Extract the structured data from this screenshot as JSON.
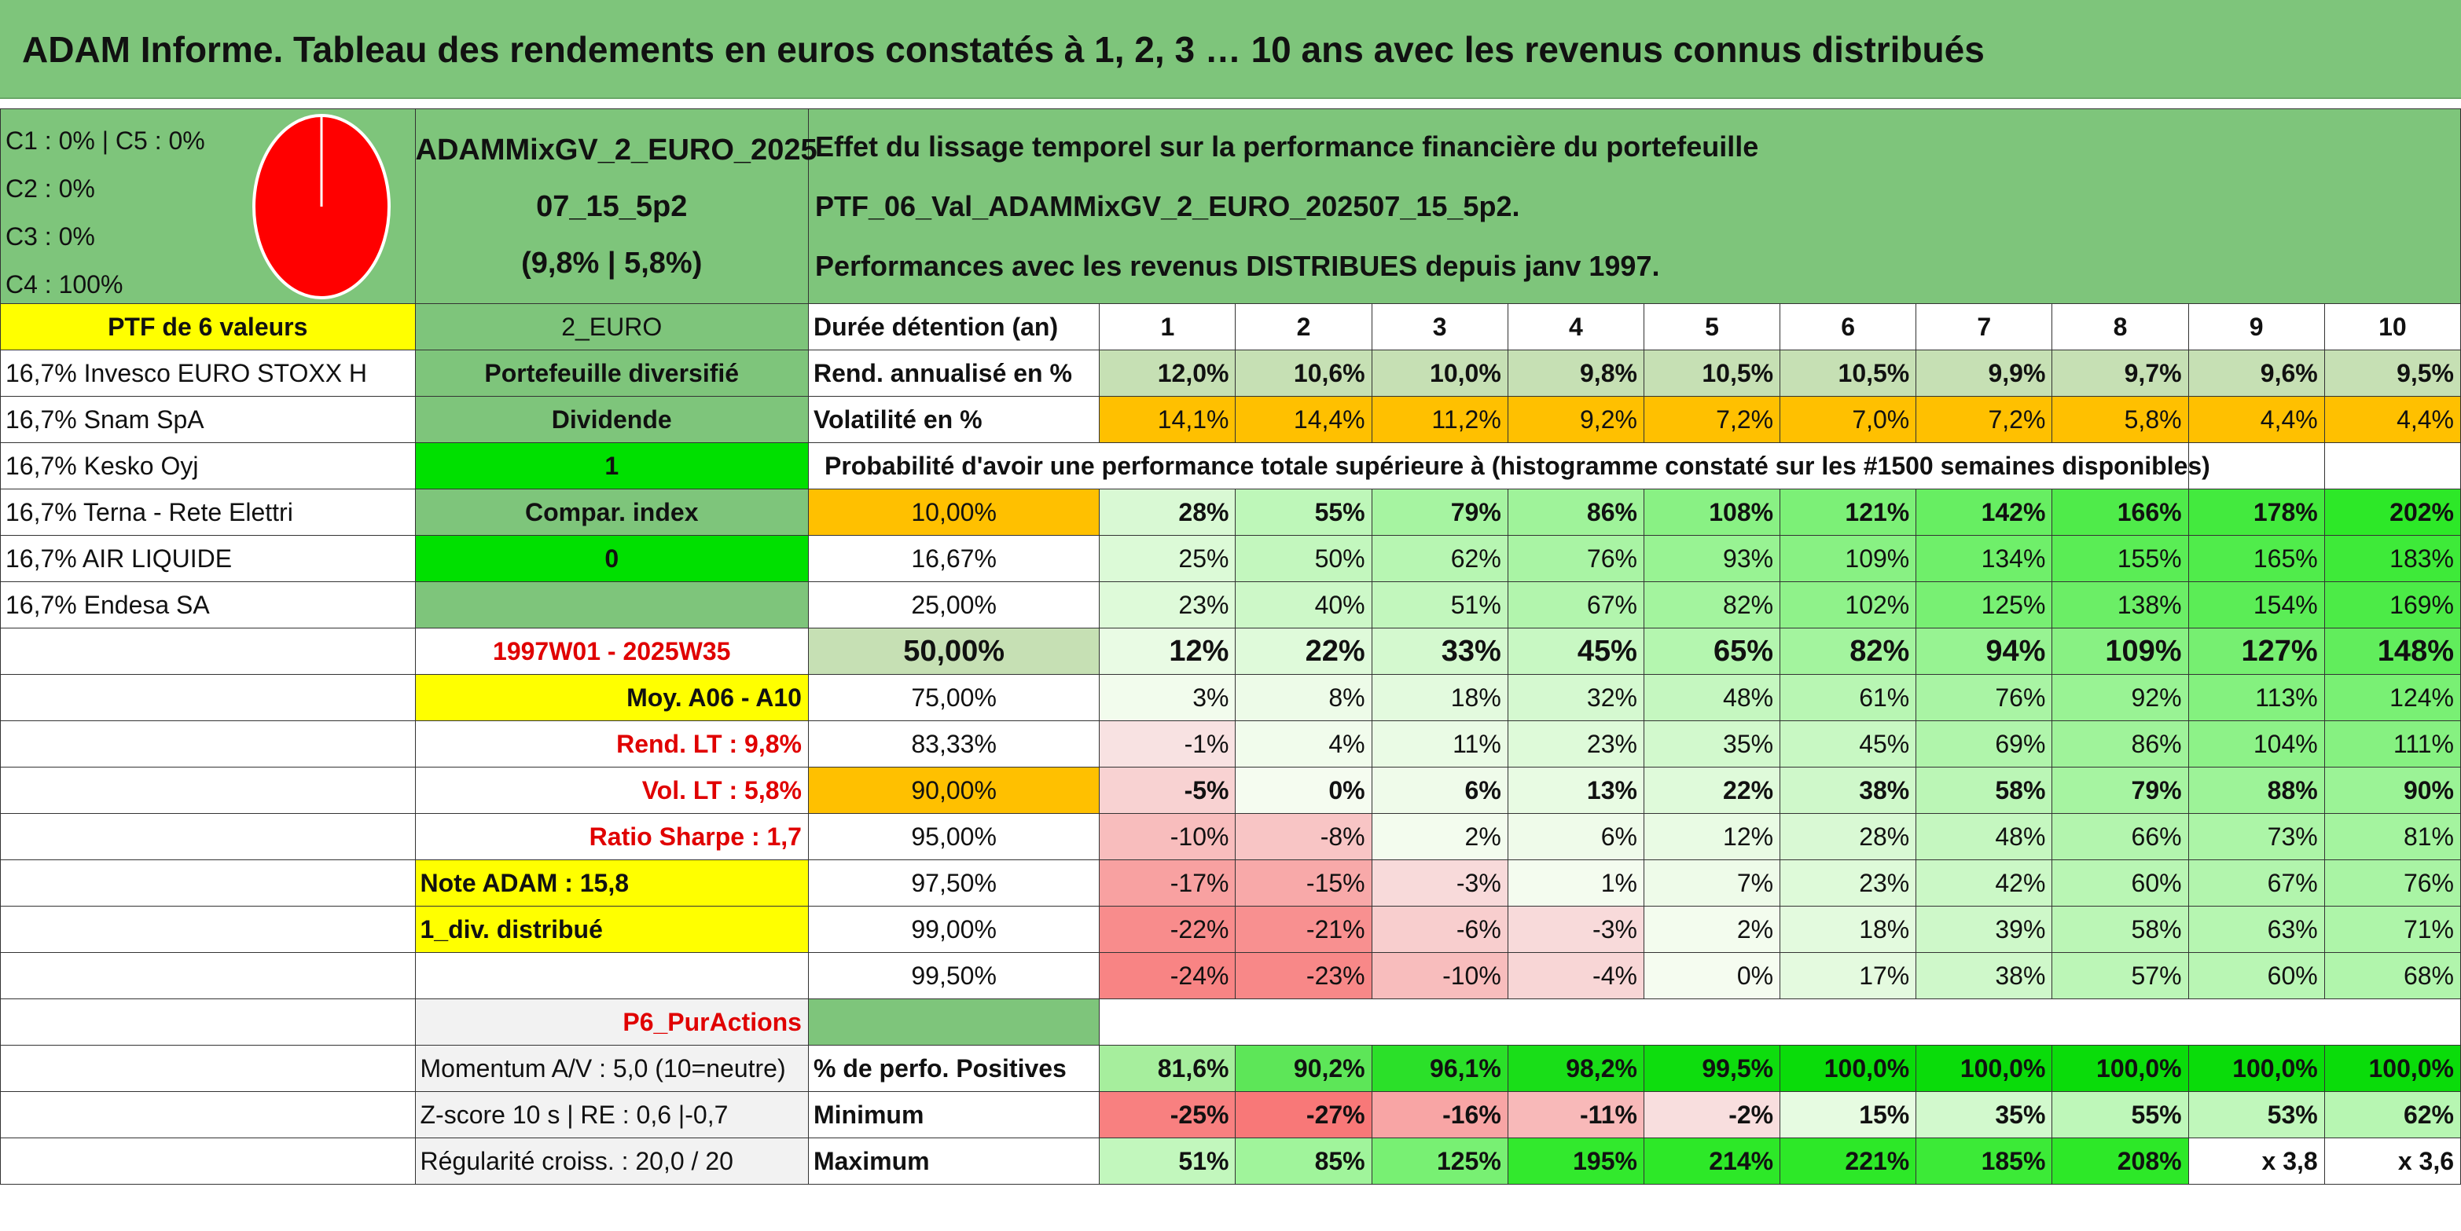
{
  "title": "ADAM Informe. Tableau des rendements en euros constatés à 1, 2, 3 … 10 ans avec les revenus connus distribués",
  "allocation": [
    "C1 : 0% | C5 : 0%",
    "C2 : 0%",
    "C3 : 0%",
    "C4 : 100%"
  ],
  "pie": {
    "slices": [
      {
        "name": "C4",
        "value": 100,
        "color": "#ff0000"
      }
    ]
  },
  "fund": {
    "name": "ADAMMixGV_2_EURO_202507_15_5p2",
    "name_line1": "ADAMMixGV_2_EURO_2025",
    "name_line2": "07_15_5p2",
    "stats": "(9,8% | 5,8%)"
  },
  "effect": {
    "line1": "Effet du lissage temporel sur la performance financière du portefeuille PTF_06_Val_ADAMMixGV_2_EURO_202507_15_5p2.",
    "line2": "Performances avec les revenus DISTRIBUES depuis janv 1997."
  },
  "left": {
    "ptf_label": "PTF de 6 valeurs",
    "holdings": [
      "16,7% Invesco EURO STOXX H",
      "16,7% Snam SpA",
      "16,7% Kesko Oyj",
      "16,7% Terna - Rete Elettri",
      "16,7% AIR LIQUIDE",
      "16,7% Endesa SA"
    ],
    "currency": "2_EURO",
    "diversified": "Portefeuille diversifié",
    "dividend_label": "Dividende",
    "dividend_value": "1",
    "compar_label": "Compar. index",
    "compar_value": "0",
    "period": "1997W01 - 2025W35",
    "moy": "Moy. A06 - A10",
    "rend_lt": "Rend. LT : 9,8%",
    "vol_lt": "Vol. LT : 5,8%",
    "sharpe": "Ratio Sharpe : 1,7",
    "note": "Note ADAM : 15,8",
    "div": "1_div. distribué",
    "p6": "P6_PurActions",
    "momentum": "Momentum A/V : 5,0 (10=neutre)",
    "zscore": "Z-score 10 s | RE : 0,6 |-0,7",
    "regularite": "Régularité croiss. : 20,0 / 20"
  },
  "table": {
    "duration_label": "Durée détention (an)",
    "years": [
      "1",
      "2",
      "3",
      "4",
      "5",
      "6",
      "7",
      "8",
      "9",
      "10"
    ],
    "rend_label": "Rend. annualisé en %",
    "rend": [
      "12,0%",
      "10,6%",
      "10,0%",
      "9,8%",
      "10,5%",
      "10,5%",
      "9,9%",
      "9,7%",
      "9,6%",
      "9,5%"
    ],
    "vol_label": "Volatilité en %",
    "vol": [
      "14,1%",
      "14,4%",
      "11,2%",
      "9,2%",
      "7,2%",
      "7,0%",
      "7,2%",
      "5,8%",
      "4,4%",
      "4,4%"
    ],
    "prob_label": "Probabilité d'avoir une performance totale supérieure à (histogramme constaté sur les #1500 semaines disponibles)",
    "prob_rows": [
      {
        "p": "10,00%",
        "v": [
          "28%",
          "55%",
          "79%",
          "86%",
          "108%",
          "121%",
          "142%",
          "166%",
          "178%",
          "202%"
        ]
      },
      {
        "p": "16,67%",
        "v": [
          "25%",
          "50%",
          "62%",
          "76%",
          "93%",
          "109%",
          "134%",
          "155%",
          "165%",
          "183%"
        ]
      },
      {
        "p": "25,00%",
        "v": [
          "23%",
          "40%",
          "51%",
          "67%",
          "82%",
          "102%",
          "125%",
          "138%",
          "154%",
          "169%"
        ]
      },
      {
        "p": "50,00%",
        "v": [
          "12%",
          "22%",
          "33%",
          "45%",
          "65%",
          "82%",
          "94%",
          "109%",
          "127%",
          "148%"
        ]
      },
      {
        "p": "75,00%",
        "v": [
          "3%",
          "8%",
          "18%",
          "32%",
          "48%",
          "61%",
          "76%",
          "92%",
          "113%",
          "124%"
        ]
      },
      {
        "p": "83,33%",
        "v": [
          "-1%",
          "4%",
          "11%",
          "23%",
          "35%",
          "45%",
          "69%",
          "86%",
          "104%",
          "111%"
        ]
      },
      {
        "p": "90,00%",
        "v": [
          "-5%",
          "0%",
          "6%",
          "13%",
          "22%",
          "38%",
          "58%",
          "79%",
          "88%",
          "90%"
        ]
      },
      {
        "p": "95,00%",
        "v": [
          "-10%",
          "-8%",
          "2%",
          "6%",
          "12%",
          "28%",
          "48%",
          "66%",
          "73%",
          "81%"
        ]
      },
      {
        "p": "97,50%",
        "v": [
          "-17%",
          "-15%",
          "-3%",
          "1%",
          "7%",
          "23%",
          "42%",
          "60%",
          "67%",
          "76%"
        ]
      },
      {
        "p": "99,00%",
        "v": [
          "-22%",
          "-21%",
          "-6%",
          "-3%",
          "2%",
          "18%",
          "39%",
          "58%",
          "63%",
          "71%"
        ]
      },
      {
        "p": "99,50%",
        "v": [
          "-24%",
          "-23%",
          "-10%",
          "-4%",
          "0%",
          "17%",
          "38%",
          "57%",
          "60%",
          "68%"
        ]
      }
    ],
    "pos_label": "% de perfo. Positives",
    "pos": [
      "81,6%",
      "90,2%",
      "96,1%",
      "98,2%",
      "99,5%",
      "100,0%",
      "100,0%",
      "100,0%",
      "100,0%",
      "100,0%"
    ],
    "min_label": "Minimum",
    "min": [
      "-25%",
      "-27%",
      "-16%",
      "-11%",
      "-2%",
      "15%",
      "35%",
      "55%",
      "53%",
      "62%"
    ],
    "max_label": "Maximum",
    "max": [
      "51%",
      "85%",
      "125%",
      "195%",
      "214%",
      "221%",
      "185%",
      "208%",
      "x 3,8",
      "x 3,6"
    ]
  }
}
